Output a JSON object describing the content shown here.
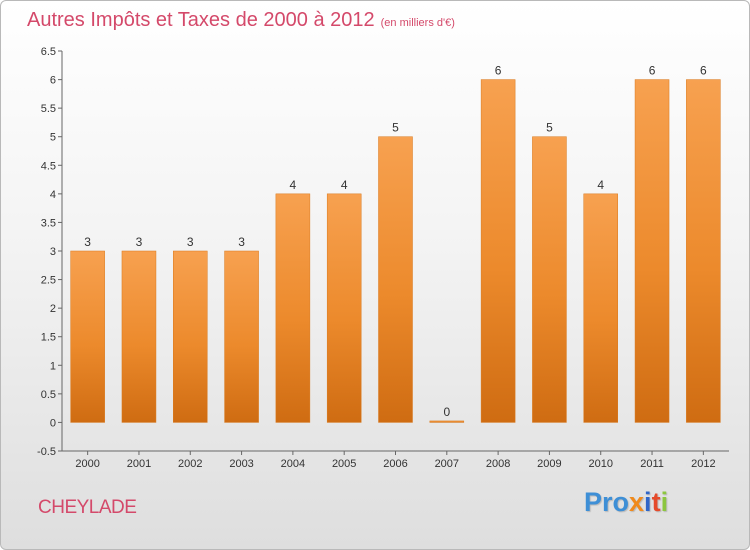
{
  "chart_data": {
    "type": "bar",
    "title": "Autres Impôts et Taxes de 2000 à 2012",
    "subtitle": "(en milliers d'€)",
    "categories": [
      "2000",
      "2001",
      "2002",
      "2003",
      "2004",
      "2005",
      "2006",
      "2007",
      "2008",
      "2009",
      "2010",
      "2011",
      "2012"
    ],
    "values": [
      3,
      3,
      3,
      3,
      4,
      4,
      5,
      0,
      6,
      5,
      4,
      6,
      6
    ],
    "y_ticks": [
      "-0.5",
      "0",
      "0.5",
      "1",
      "1.5",
      "2",
      "2.5",
      "3",
      "3.5",
      "4",
      "4.5",
      "5",
      "5.5",
      "6",
      "6.5"
    ],
    "ylim": [
      -0.5,
      6.5
    ],
    "grid": false,
    "bar_color": "#f0922e",
    "bar_color_dark": "#d06e12"
  },
  "footer": {
    "commune": "CHEYLADE",
    "logo": [
      "Pro",
      "x",
      "i",
      "t",
      "i"
    ]
  },
  "colors": {
    "title": "#d4496a"
  }
}
